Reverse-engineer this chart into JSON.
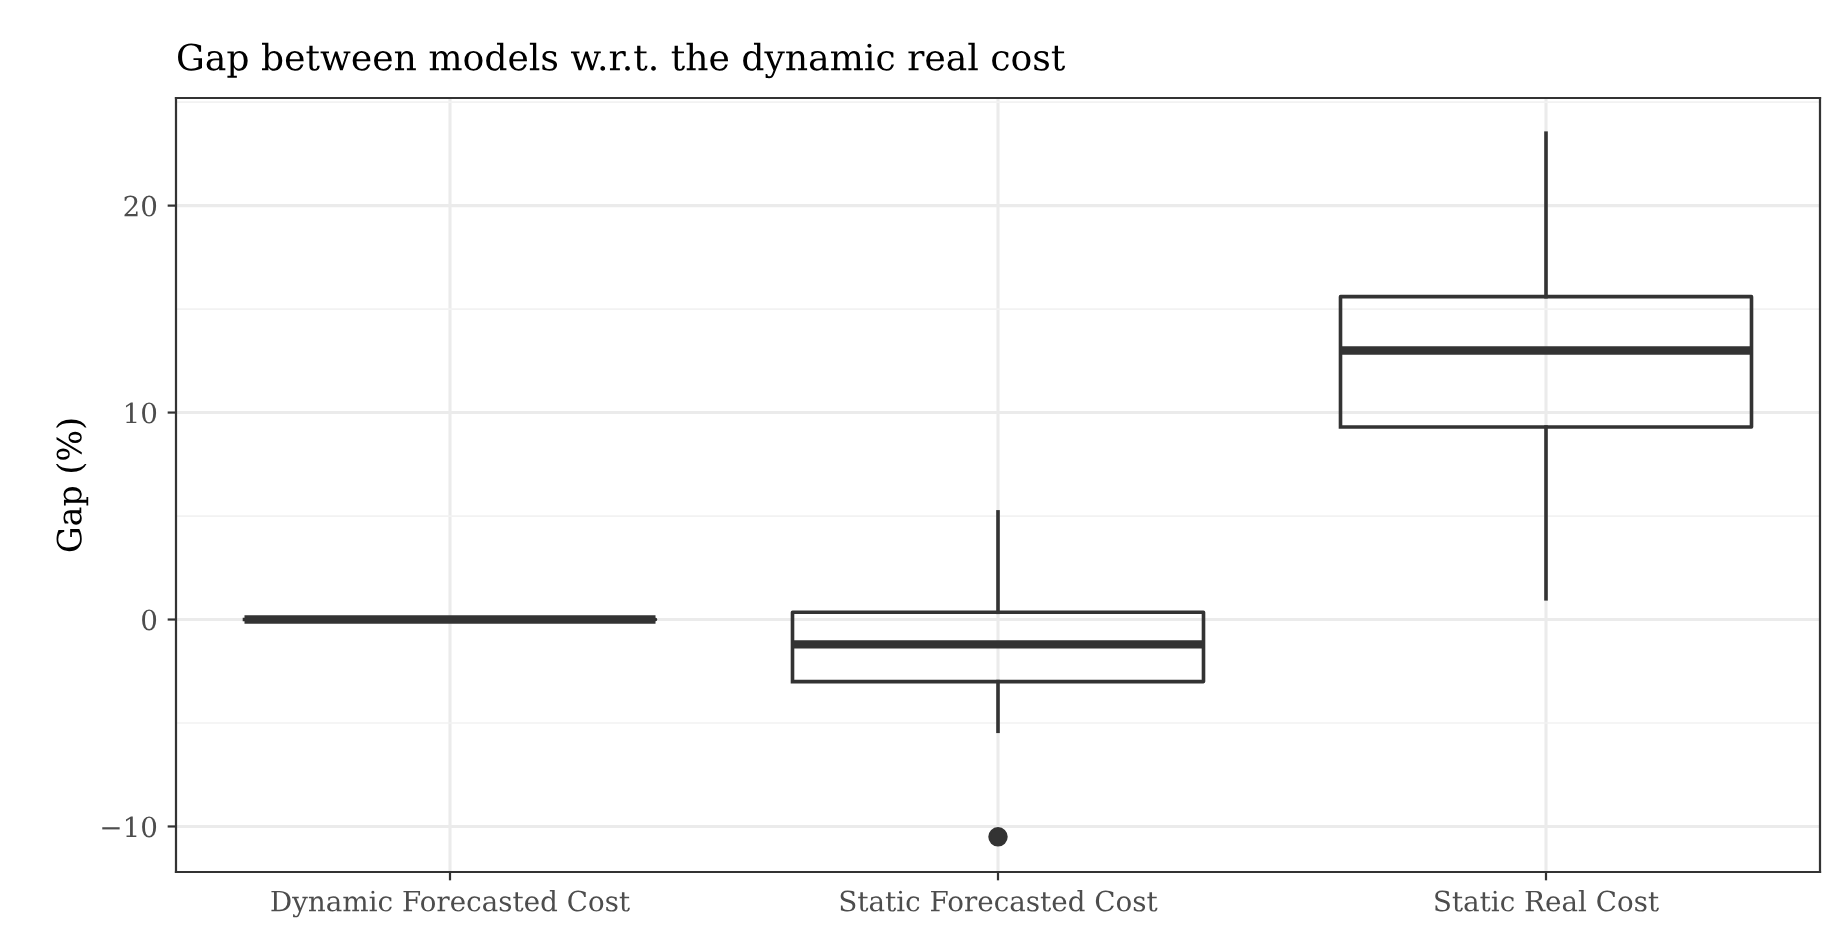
{
  "chart_data": {
    "type": "box",
    "title": "Gap between models w.r.t. the dynamic real cost",
    "ylabel": "Gap (%)",
    "categories": [
      "Dynamic Forecasted Cost",
      "Static Forecasted Cost",
      "Static Real Cost"
    ],
    "boxes": [
      {
        "low": 0,
        "q1": 0,
        "median": 0,
        "q3": 0,
        "high": 0
      },
      {
        "low": -5.4,
        "q1": -3.0,
        "median": -1.2,
        "q3": 0.35,
        "high": 5.2,
        "outliers": [
          -10.5
        ]
      },
      {
        "low": 1.0,
        "q1": 9.3,
        "median": 13.0,
        "q3": 15.6,
        "high": 23.5
      }
    ],
    "color": "#333333",
    "ylim": [
      -12.2,
      25.2
    ],
    "yticks": [
      {
        "value": -10,
        "label": "−10"
      },
      0,
      10,
      20
    ],
    "grid": true
  }
}
